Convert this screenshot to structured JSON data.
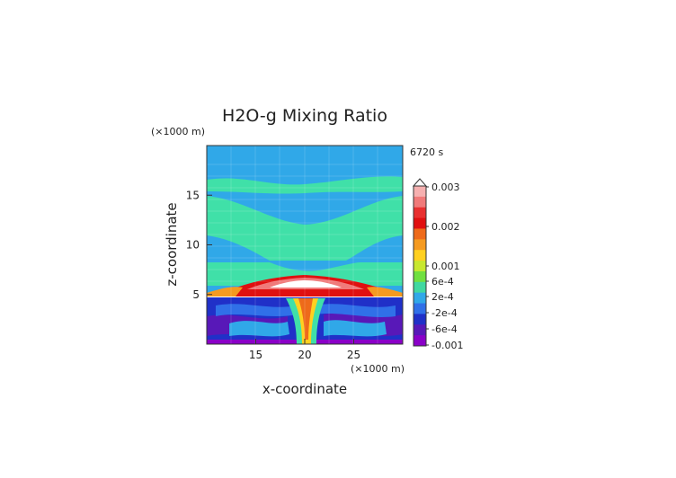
{
  "chart_data": {
    "type": "heatmap",
    "title": "H2O-g Mixing Ratio",
    "xlabel": "x-coordinate",
    "ylabel": "z-coordinate",
    "x_unit": "(×1000 m)",
    "y_unit": "(×1000 m)",
    "time_label": "6720 s",
    "xlim": [
      10,
      30
    ],
    "ylim": [
      0,
      20
    ],
    "x_ticks": [
      "15",
      "20",
      "25"
    ],
    "y_ticks": [
      "5",
      "10",
      "15"
    ],
    "colorbar": {
      "labels": [
        "0.003",
        "0.002",
        "0.001",
        "6e-4",
        "2e-4",
        "-2e-4",
        "-6e-4",
        "-0.001"
      ],
      "levels": [
        0.003,
        0.002,
        0.001,
        0.0006,
        0.0002,
        -0.0002,
        -0.0006,
        -0.001
      ],
      "colors_top_to_bottom": [
        "#f6b0b0",
        "#f07a7a",
        "#e83030",
        "#e01010",
        "#ee6a1a",
        "#f59a20",
        "#ffd020",
        "#c8e830",
        "#70e040",
        "#40d8a0",
        "#30a8e8",
        "#3070e8",
        "#2030c8",
        "#5818b8",
        "#8a00c8"
      ]
    },
    "bands": [
      {
        "z_range": [
          18,
          20
        ],
        "value": -0.0002
      },
      {
        "z_range": [
          15.5,
          17
        ],
        "value": 0.0002
      },
      {
        "z_range": [
          11.5,
          14.5
        ],
        "value": 0.0002
      },
      {
        "z_range": [
          6,
          8.5
        ],
        "value": 0.0002
      },
      {
        "z_range": [
          4.8,
          6.2
        ],
        "value": 0.003
      },
      {
        "z_range": [
          0,
          4.8
        ],
        "value": -0.0006
      }
    ]
  }
}
